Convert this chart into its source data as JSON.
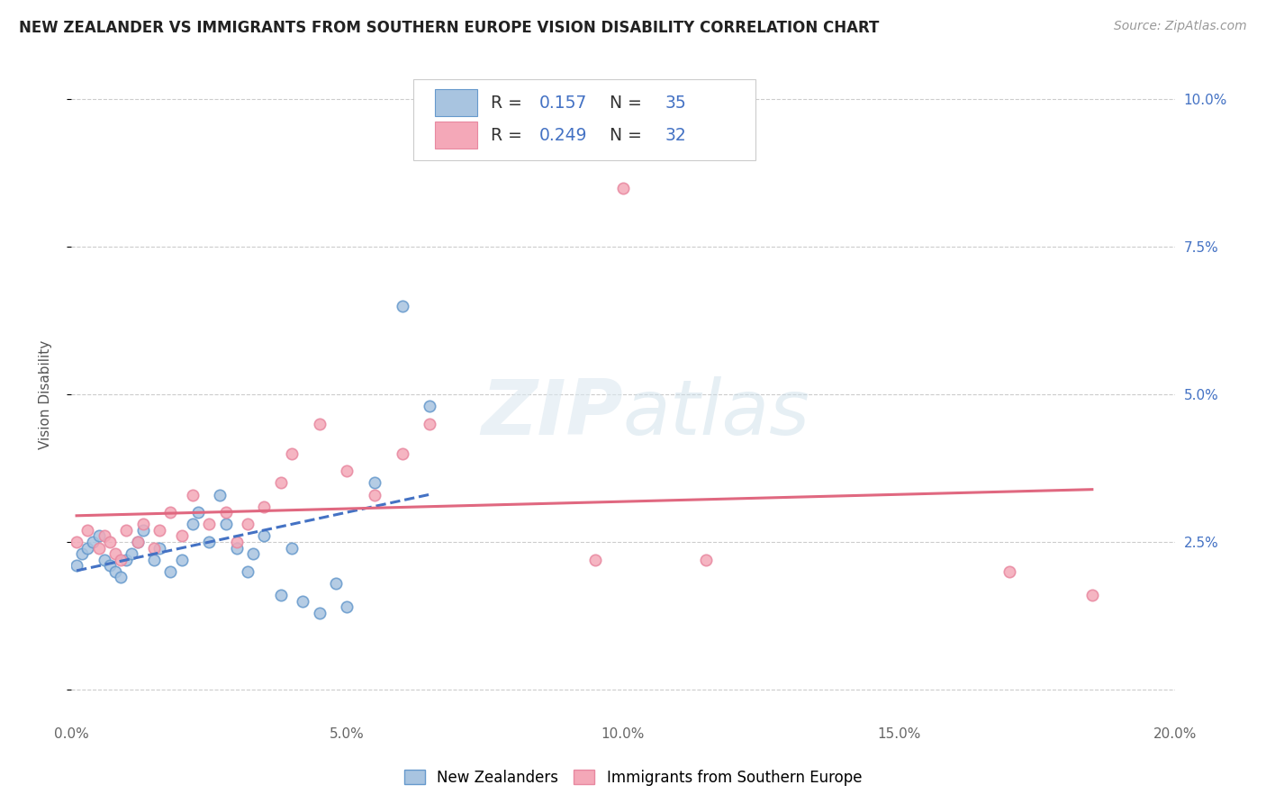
{
  "title": "NEW ZEALANDER VS IMMIGRANTS FROM SOUTHERN EUROPE VISION DISABILITY CORRELATION CHART",
  "source": "Source: ZipAtlas.com",
  "ylabel": "Vision Disability",
  "xlim": [
    0.0,
    0.2
  ],
  "ylim": [
    -0.005,
    0.105
  ],
  "xticks": [
    0.0,
    0.05,
    0.1,
    0.15,
    0.2
  ],
  "xtick_labels": [
    "0.0%",
    "5.0%",
    "10.0%",
    "15.0%",
    "20.0%"
  ],
  "yticks": [
    0.0,
    0.025,
    0.05,
    0.075,
    0.1
  ],
  "ytick_labels": [
    "",
    "2.5%",
    "5.0%",
    "7.5%",
    "10.0%"
  ],
  "nz_R": 0.157,
  "nz_N": 35,
  "se_R": 0.249,
  "se_N": 32,
  "nz_color": "#a8c4e0",
  "se_color": "#f4a8b8",
  "nz_edge_color": "#6699cc",
  "se_edge_color": "#e888a0",
  "nz_line_color": "#4472c4",
  "se_line_color": "#e06880",
  "legend_label_nz": "New Zealanders",
  "legend_label_se": "Immigrants from Southern Europe",
  "background_color": "#ffffff",
  "grid_color": "#cccccc",
  "nz_x": [
    0.001,
    0.002,
    0.003,
    0.004,
    0.005,
    0.006,
    0.007,
    0.008,
    0.009,
    0.01,
    0.011,
    0.012,
    0.013,
    0.015,
    0.016,
    0.018,
    0.02,
    0.022,
    0.023,
    0.025,
    0.027,
    0.028,
    0.03,
    0.032,
    0.033,
    0.035,
    0.038,
    0.04,
    0.042,
    0.045,
    0.048,
    0.05,
    0.055,
    0.06,
    0.065
  ],
  "nz_y": [
    0.021,
    0.023,
    0.024,
    0.025,
    0.026,
    0.022,
    0.021,
    0.02,
    0.019,
    0.022,
    0.023,
    0.025,
    0.027,
    0.022,
    0.024,
    0.02,
    0.022,
    0.028,
    0.03,
    0.025,
    0.033,
    0.028,
    0.024,
    0.02,
    0.023,
    0.026,
    0.016,
    0.024,
    0.015,
    0.013,
    0.018,
    0.014,
    0.035,
    0.065,
    0.048
  ],
  "se_x": [
    0.001,
    0.003,
    0.005,
    0.006,
    0.007,
    0.008,
    0.009,
    0.01,
    0.012,
    0.013,
    0.015,
    0.016,
    0.018,
    0.02,
    0.022,
    0.025,
    0.028,
    0.03,
    0.032,
    0.035,
    0.038,
    0.04,
    0.045,
    0.05,
    0.055,
    0.06,
    0.065,
    0.095,
    0.1,
    0.115,
    0.17,
    0.185
  ],
  "se_y": [
    0.025,
    0.027,
    0.024,
    0.026,
    0.025,
    0.023,
    0.022,
    0.027,
    0.025,
    0.028,
    0.024,
    0.027,
    0.03,
    0.026,
    0.033,
    0.028,
    0.03,
    0.025,
    0.028,
    0.031,
    0.035,
    0.04,
    0.045,
    0.037,
    0.033,
    0.04,
    0.045,
    0.022,
    0.085,
    0.022,
    0.02,
    0.016
  ]
}
